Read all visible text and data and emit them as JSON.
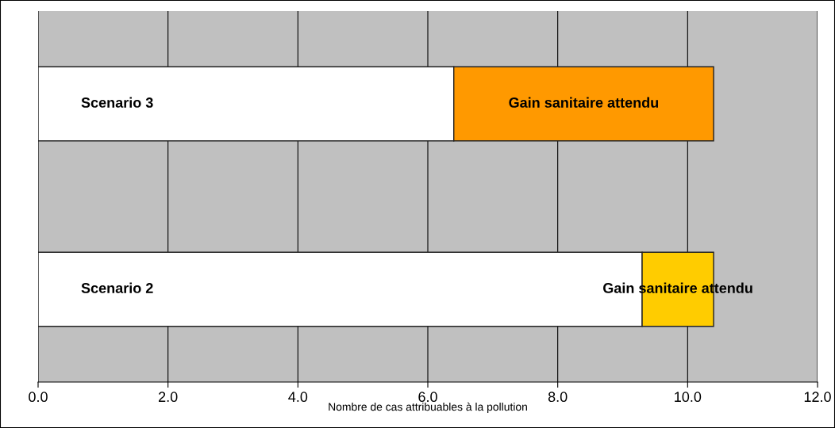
{
  "chart_data": {
    "type": "bar",
    "orientation": "horizontal",
    "stacked": true,
    "xlabel": "Nombre de cas attribuables à la pollution",
    "categories": [
      "Scenario 3",
      "Scenario 2"
    ],
    "series": [
      {
        "color": "#ffffff",
        "values": [
          6.4,
          9.3
        ]
      },
      {
        "name": "Gain sanitaire attendu",
        "colors": [
          "#ff9900",
          "#ffcc00"
        ],
        "values": [
          4.0,
          1.1
        ]
      }
    ],
    "xlim": [
      0,
      12
    ],
    "xticks": [
      {
        "value": 0,
        "label": "0.0"
      },
      {
        "value": 2,
        "label": "2.0"
      },
      {
        "value": 4,
        "label": "4.0"
      },
      {
        "value": 6,
        "label": "6.0"
      },
      {
        "value": 8,
        "label": "8.0"
      },
      {
        "value": 10,
        "label": "10.0"
      },
      {
        "value": 12,
        "label": "12.0"
      }
    ],
    "grid": "x",
    "legend": false
  }
}
